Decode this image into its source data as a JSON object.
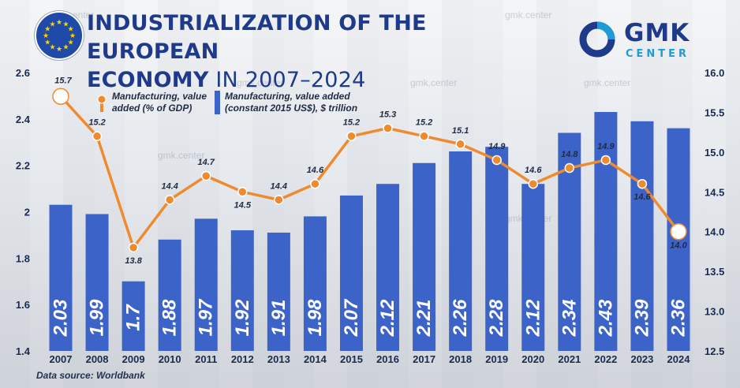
{
  "header": {
    "title_line1": "INDUSTRIALIZATION OF THE EUROPEAN",
    "title_line2_bold": "ECONOMY",
    "title_line2_rest": " IN 2007–2024"
  },
  "logo": {
    "name": "GMK",
    "sub": "CENTER",
    "icon": "gmk-logo-icon"
  },
  "flag": {
    "icon": "eu-flag-icon"
  },
  "watermark": "gmk.center",
  "source": "Data source:  Worldbank",
  "colors": {
    "bar": "#3c63c8",
    "line": "#f08a2e",
    "title": "#1e3a8a",
    "axis_text": "#1a2a4f"
  },
  "chart_data": {
    "type": "bar",
    "categories": [
      "2007",
      "2008",
      "2009",
      "2010",
      "2011",
      "2012",
      "2013",
      "2014",
      "2015",
      "2016",
      "2017",
      "2018",
      "2019",
      "2020",
      "2021",
      "2022",
      "2023",
      "2024"
    ],
    "series": [
      {
        "name": "Manufacturing, value added (constant 2015 US$), $ trillion",
        "type": "bar",
        "axis": "left",
        "values": [
          2.03,
          1.99,
          1.7,
          1.88,
          1.97,
          1.92,
          1.91,
          1.98,
          2.07,
          2.12,
          2.21,
          2.26,
          2.28,
          2.12,
          2.34,
          2.43,
          2.39,
          2.36
        ],
        "labels": [
          "2.03",
          "1.99",
          "1.7",
          "1.88",
          "1.97",
          "1.92",
          "1.91",
          "1.98",
          "2.07",
          "2.12",
          "2.21",
          "2.26",
          "2.28",
          "2.12",
          "2.34",
          "2.43",
          "2.39",
          "2.36"
        ]
      },
      {
        "name": "Manufacturing, value added (% of GDP)",
        "type": "line",
        "axis": "right",
        "values": [
          15.7,
          15.2,
          13.8,
          14.4,
          14.7,
          14.5,
          14.4,
          14.6,
          15.2,
          15.3,
          15.2,
          15.1,
          14.9,
          14.6,
          14.8,
          14.9,
          14.6,
          14.0
        ],
        "labels": [
          "15.7",
          "15.2",
          "13.8",
          "14.4",
          "14.7",
          "14.5",
          "14.4",
          "14.6",
          "15.2",
          "15.3",
          "15.2",
          "15.1",
          "14.9",
          "14.6",
          "14.8",
          "14.9",
          "14.6",
          "14.0"
        ]
      }
    ],
    "legend": [
      {
        "line1": "Manufacturing, value",
        "line2": "added (% of GDP)"
      },
      {
        "line1": "Manufacturing, value added",
        "line2": "(constant 2015 US$), $ trillion"
      }
    ],
    "y_left": {
      "min": 1.4,
      "max": 2.6,
      "ticks": [
        "1.4",
        "1.6",
        "1.8",
        "2",
        "2.2",
        "2.4",
        "2.6"
      ]
    },
    "y_right": {
      "min": 12.5,
      "max": 16.0,
      "ticks": [
        "12.5",
        "13.0",
        "13.5",
        "14.0",
        "14.5",
        "15.0",
        "15.5",
        "16.0"
      ]
    },
    "legend_placement": "top-left",
    "grid": false
  }
}
